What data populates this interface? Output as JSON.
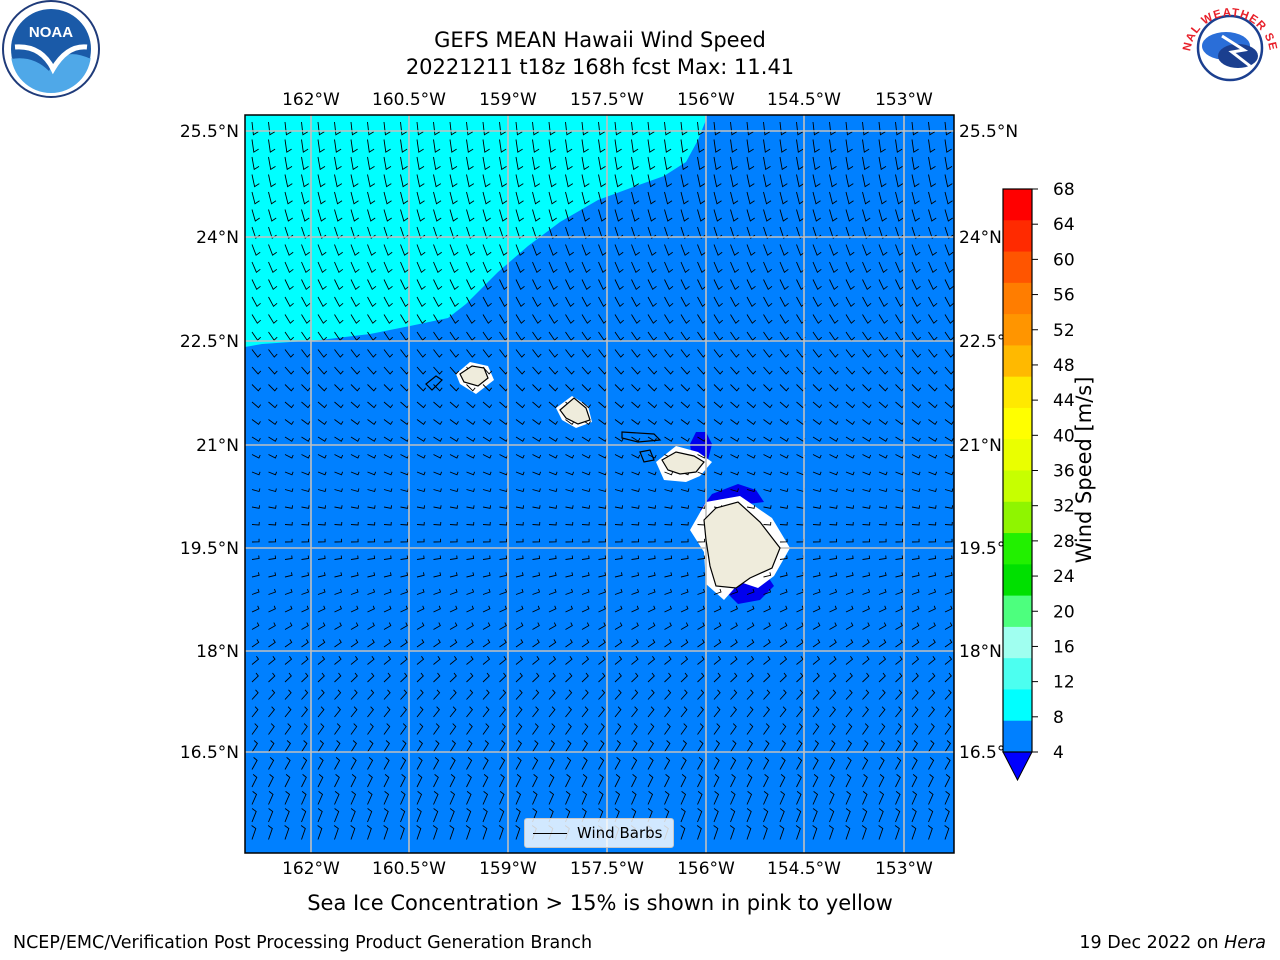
{
  "title": {
    "line1": "GEFS MEAN Hawaii Wind Speed",
    "line2": "20221211 t18z 168h fcst   Max: 11.41"
  },
  "map": {
    "lon_labels": [
      "162°W",
      "160.5°W",
      "159°W",
      "157.5°W",
      "156°W",
      "154.5°W",
      "153°W"
    ],
    "lat_labels": [
      "25.5°N",
      "24°N",
      "22.5°N",
      "21°N",
      "19.5°N",
      "18°N",
      "16.5°N"
    ],
    "colors": {
      "ocean_fill": "#0080ff",
      "high_wind_fill": "#00ffff",
      "calm_fill": "#0000ee",
      "land": "#efecdc",
      "grid": "#c0c0c0"
    },
    "legend_label": "Wind Barbs"
  },
  "colorbar": {
    "label": "Wind Speed [m/s]",
    "ticks": [
      "68",
      "64",
      "60",
      "56",
      "52",
      "48",
      "44",
      "40",
      "36",
      "32",
      "28",
      "24",
      "20",
      "16",
      "12",
      "8",
      "4"
    ],
    "colors": [
      "#ff0000",
      "#ff2a00",
      "#ff5500",
      "#ff7d00",
      "#ff9500",
      "#ffb900",
      "#ffe900",
      "#ffff00",
      "#eaff00",
      "#c7ff00",
      "#8ff500",
      "#22f000",
      "#00e000",
      "#4dff7e",
      "#a0fff0",
      "#4cfff0",
      "#00ffff",
      "#0080ff"
    ],
    "under_color": "#0000ff"
  },
  "subtitle": "Sea Ice Concentration > 15% is shown in pink to yellow",
  "footer": {
    "left": "NCEP/EMC/Verification Post Processing Product Generation Branch",
    "date": "19 Dec 2022 on",
    "machine": "Hera"
  },
  "logos": {
    "noaa_text": "NOAA",
    "nws_text": "NATIONAL WEATHER SERVICE"
  }
}
